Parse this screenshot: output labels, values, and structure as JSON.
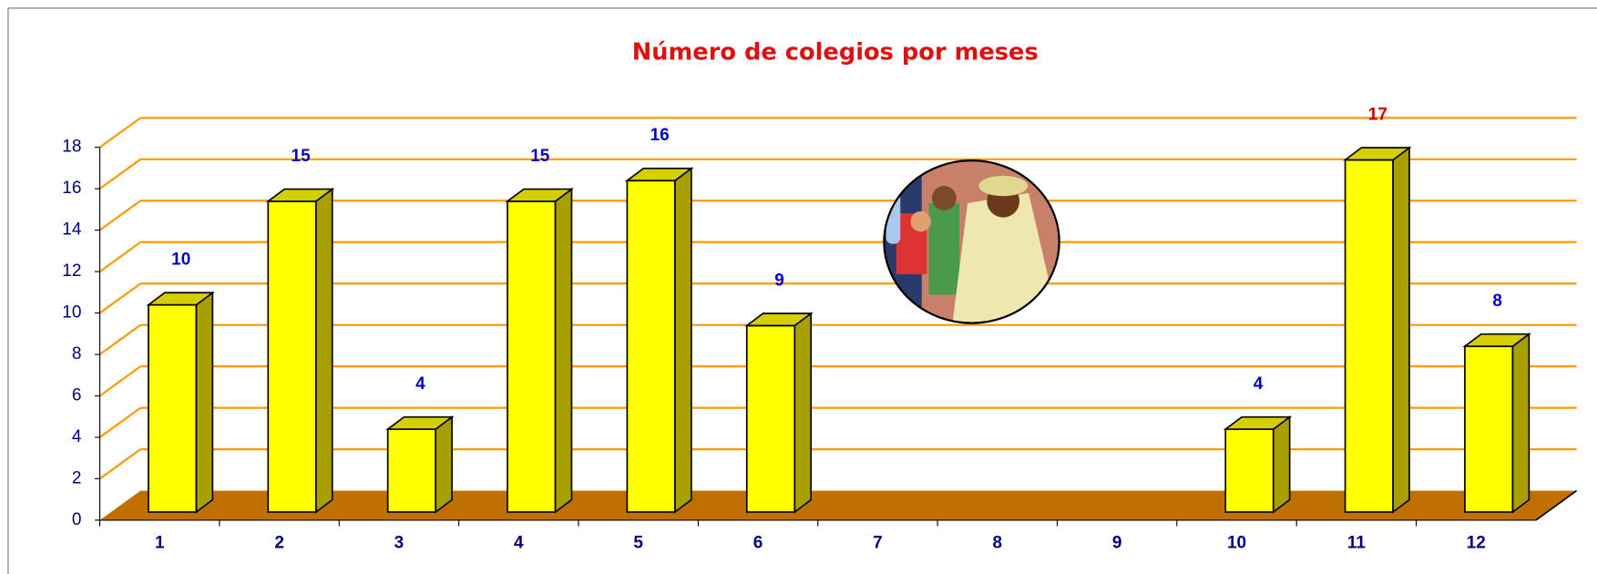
{
  "chart_data": {
    "type": "bar3d",
    "title": "Número de colegios por meses",
    "categories": [
      "1",
      "2",
      "3",
      "4",
      "5",
      "6",
      "7",
      "8",
      "9",
      "10",
      "11",
      "12"
    ],
    "values": [
      10,
      15,
      4,
      15,
      16,
      9,
      null,
      null,
      null,
      4,
      17,
      8
    ],
    "color": "#ffff00",
    "side_color": "#a8a000",
    "top_color": "#d6cf00",
    "floor_color": "#c07000",
    "grid_color": "#ff9900",
    "value_label_color": "#0000cc",
    "max_label_color": "#cc0000",
    "ylim": [
      0,
      18
    ],
    "yticks": [
      0,
      2,
      4,
      6,
      8,
      10,
      12,
      14,
      16,
      18
    ],
    "grid": true
  }
}
